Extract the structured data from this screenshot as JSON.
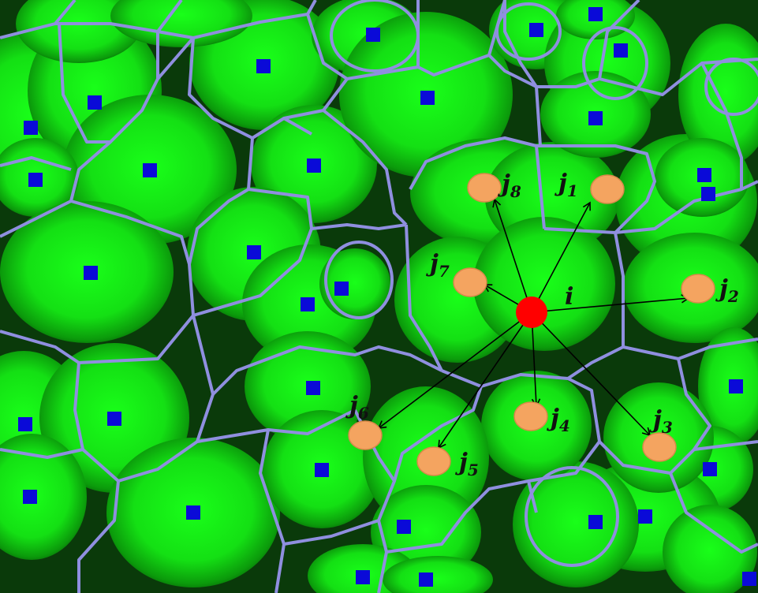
{
  "colors": {
    "cell_light": "#19ff19",
    "cell_mid": "#11c811",
    "cell_dark": "#000000",
    "boundary": "#8f8fdf",
    "seed": "#0a0ad8",
    "particle": "#f4a460",
    "particle_stroke": "#d9894a",
    "central": "#ff0000",
    "arrow": "#000000"
  },
  "central_particle": {
    "label": "i"
  },
  "neighbors": [
    {
      "id": "j1",
      "letter": "j",
      "index": "1"
    },
    {
      "id": "j2",
      "letter": "j",
      "index": "2"
    },
    {
      "id": "j3",
      "letter": "j",
      "index": "3"
    },
    {
      "id": "j4",
      "letter": "j",
      "index": "4"
    },
    {
      "id": "j5",
      "letter": "j",
      "index": "5"
    },
    {
      "id": "j6",
      "letter": "j",
      "index": "6"
    },
    {
      "id": "j7",
      "letter": "j",
      "index": "7"
    },
    {
      "id": "j8",
      "letter": "j",
      "index": "8"
    }
  ]
}
